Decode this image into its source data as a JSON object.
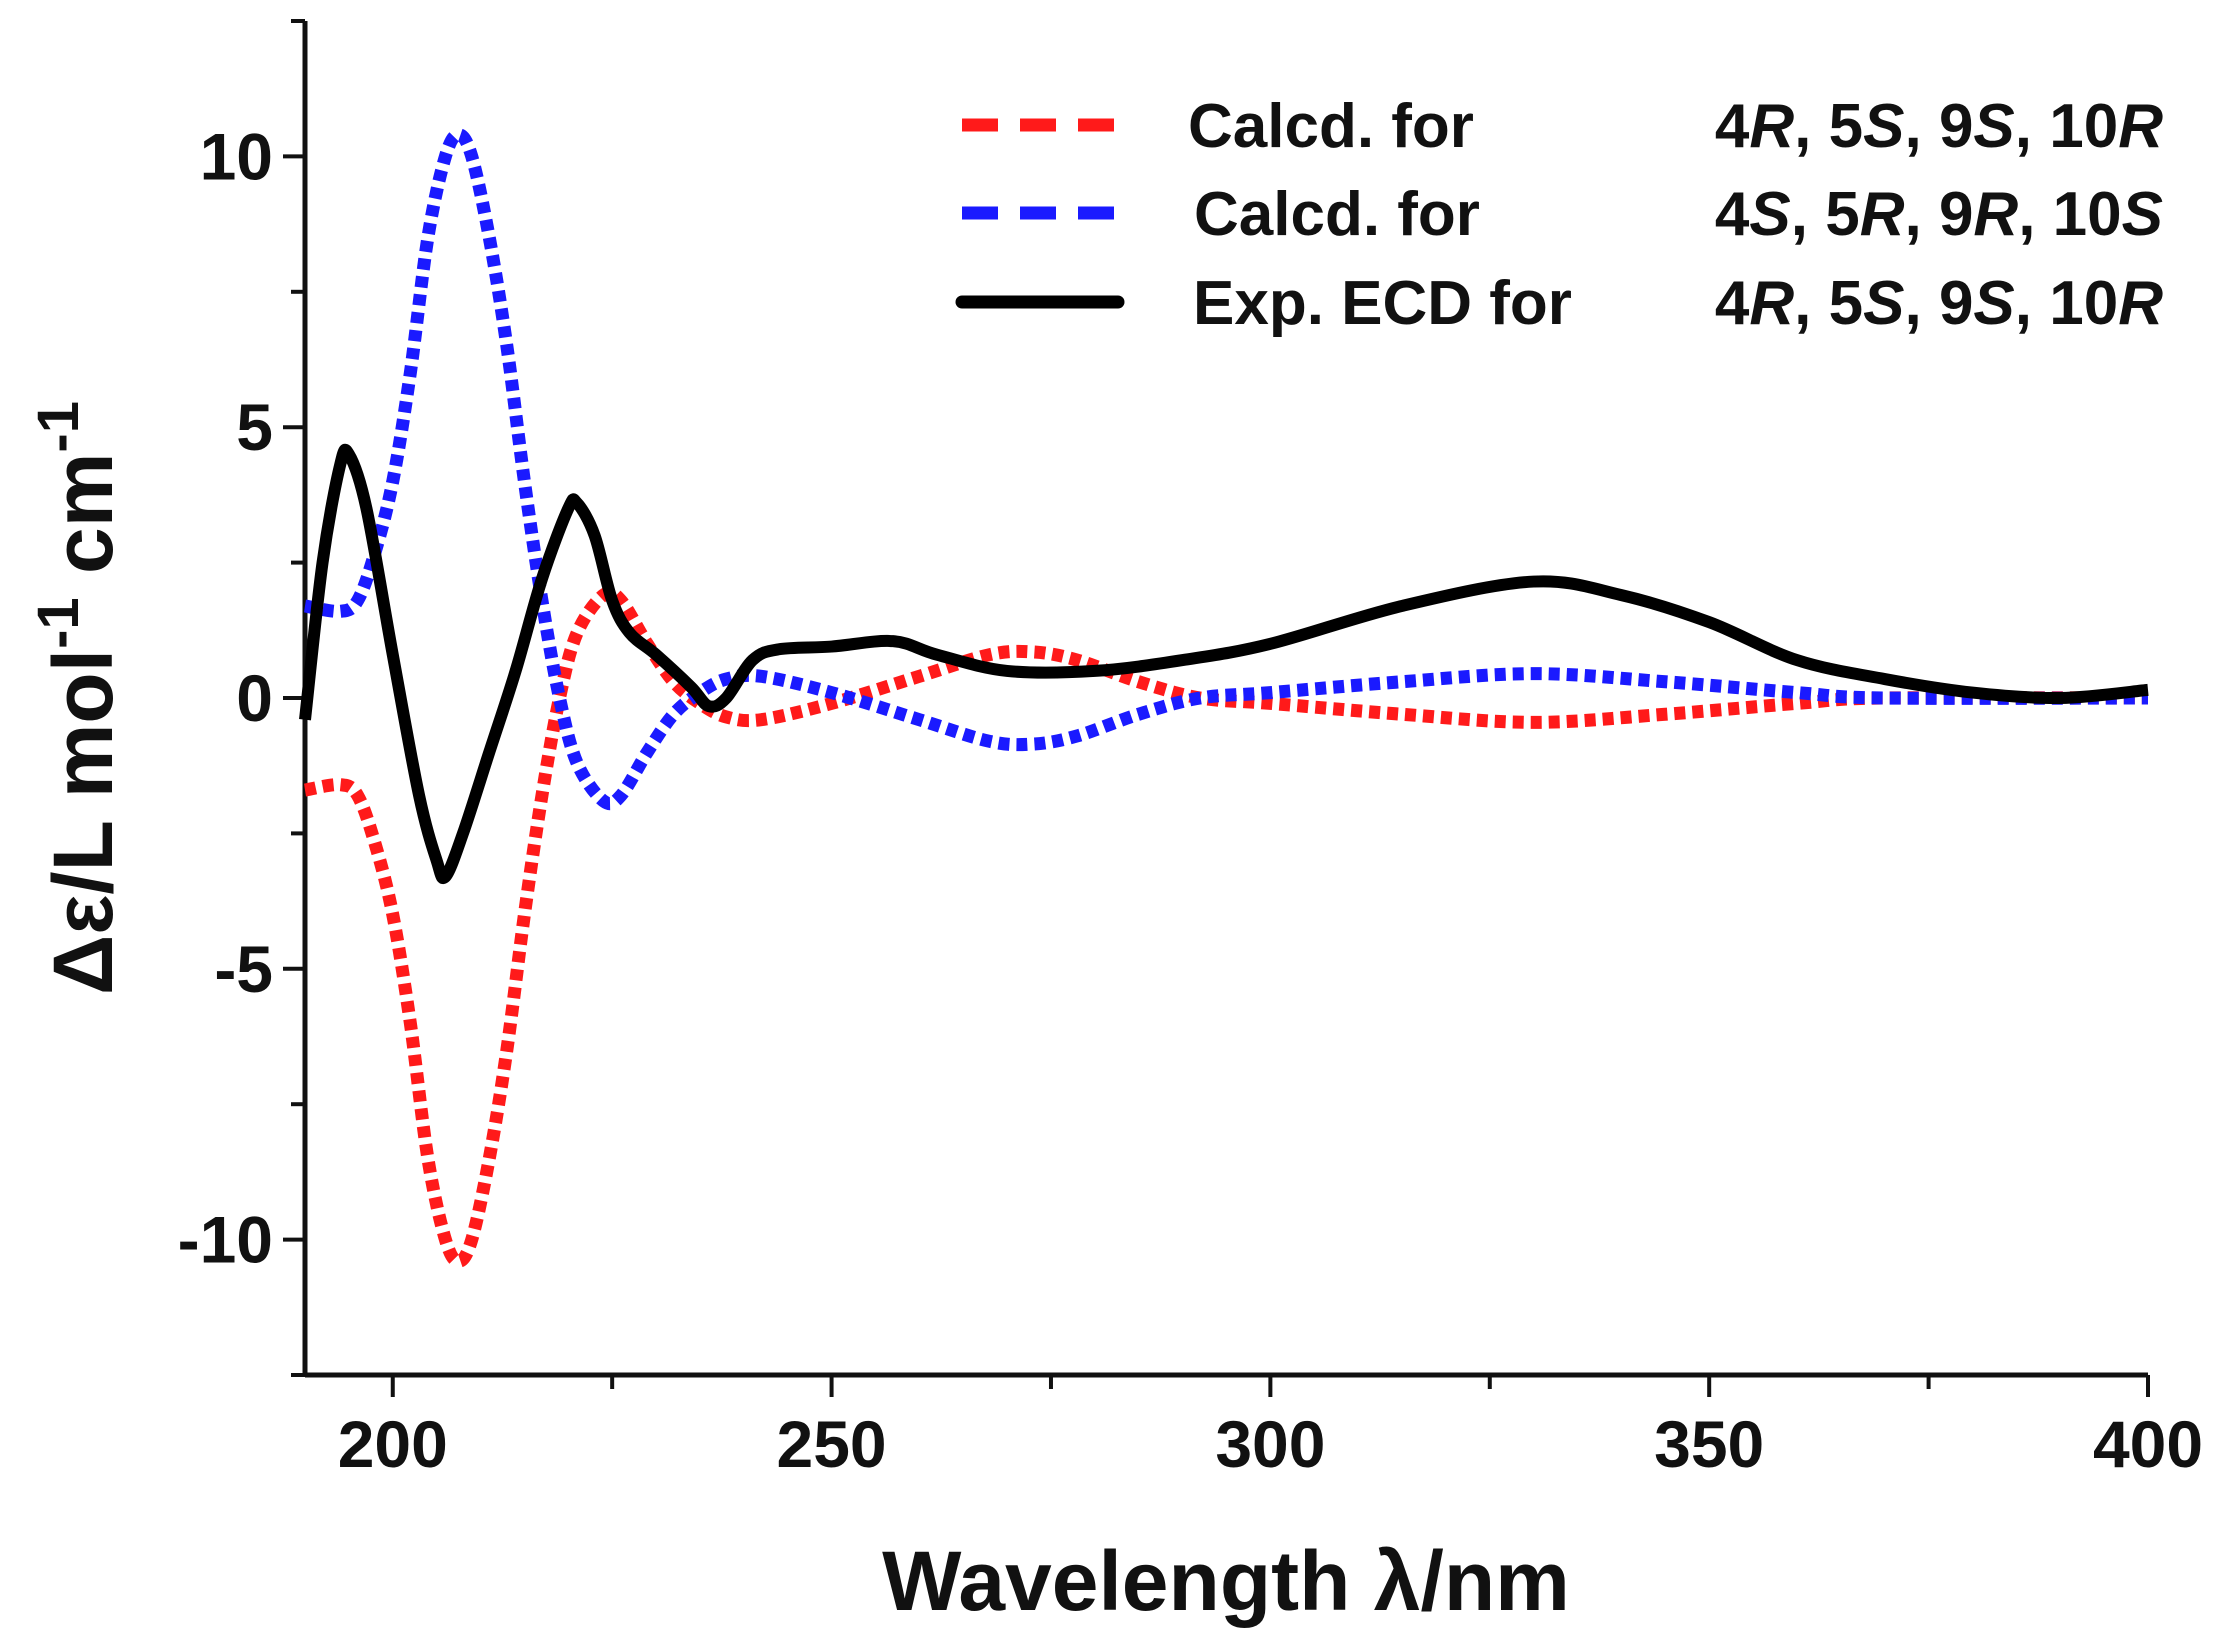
{
  "chart_data": {
    "type": "line",
    "xlabel": "Wavelength λ/nm",
    "ylabel_parts": [
      "Δε/L mol",
      "-1",
      " cm",
      "-1"
    ],
    "xlim": [
      190,
      400
    ],
    "ylim": [
      -12.5,
      12.5
    ],
    "xticks": [
      200,
      250,
      300,
      350,
      400
    ],
    "yticks": [
      -10,
      -5,
      0,
      5,
      10
    ],
    "grid": false,
    "legend_position": "top-right",
    "series": [
      {
        "name": "Calcd. for",
        "config": "4R, 5S, 9S, 10R",
        "color": "#ff1a1a",
        "style": "dotted",
        "x": [
          190,
          194,
          196,
          198,
          200,
          202,
          204,
          206,
          207.5,
          209,
          211,
          213,
          215,
          217,
          219,
          221,
          224,
          226,
          229,
          232,
          235,
          238,
          242,
          250,
          260,
          268,
          273,
          278,
          285,
          292,
          300,
          315,
          330,
          345,
          360,
          370,
          400
        ],
        "y": [
          -1.7,
          -1.6,
          -1.8,
          -2.7,
          -4,
          -6,
          -8.5,
          -10,
          -10.4,
          -10,
          -8.5,
          -6.5,
          -4,
          -1.8,
          0,
          1.2,
          1.9,
          1.8,
          1,
          0.3,
          -0.1,
          -0.35,
          -0.4,
          -0.1,
          0.4,
          0.8,
          0.85,
          0.7,
          0.3,
          0,
          -0.1,
          -0.3,
          -0.45,
          -0.3,
          -0.1,
          0,
          0
        ]
      },
      {
        "name": "Calcd. for",
        "config": "4S, 5R, 9R, 10S",
        "color": "#1a1aff",
        "style": "dotted",
        "x": [
          190,
          194,
          196,
          198,
          200,
          202,
          204,
          206,
          207.5,
          209,
          211,
          213,
          215,
          217,
          219,
          221,
          224,
          226,
          229,
          232,
          235,
          238,
          242,
          250,
          260,
          268,
          273,
          278,
          285,
          292,
          300,
          315,
          330,
          345,
          360,
          370,
          400
        ],
        "y": [
          1.7,
          1.6,
          1.8,
          2.7,
          4,
          6,
          8.5,
          10,
          10.4,
          10,
          8.5,
          6.5,
          4,
          1.8,
          0,
          -1.2,
          -1.9,
          -1.8,
          -1,
          -0.3,
          0.1,
          0.35,
          0.4,
          0.1,
          -0.4,
          -0.8,
          -0.85,
          -0.7,
          -0.3,
          0,
          0.1,
          0.3,
          0.45,
          0.3,
          0.1,
          0,
          0
        ]
      },
      {
        "name": "Exp. ECD for",
        "config": "4R, 5S, 9S, 10R",
        "color": "#000000",
        "style": "solid",
        "x": [
          190,
          192,
          194,
          195,
          197,
          200,
          203,
          205,
          206,
          208,
          211,
          214,
          217,
          220,
          221,
          223,
          225,
          227,
          230,
          234,
          236,
          238,
          241,
          244,
          250,
          257,
          262,
          270,
          280,
          290,
          300,
          315,
          330,
          340,
          350,
          360,
          370,
          380,
          390,
          400
        ],
        "y": [
          -0.4,
          2.5,
          4.3,
          4.5,
          3.5,
          0.8,
          -1.8,
          -3,
          -3.3,
          -2.5,
          -1,
          0.5,
          2.2,
          3.5,
          3.6,
          3,
          1.8,
          1.2,
          0.8,
          0.2,
          -0.15,
          0,
          0.7,
          0.9,
          0.95,
          1.05,
          0.8,
          0.5,
          0.5,
          0.7,
          1.0,
          1.7,
          2.15,
          1.9,
          1.4,
          0.7,
          0.35,
          0.1,
          0,
          0.15
        ]
      }
    ]
  }
}
